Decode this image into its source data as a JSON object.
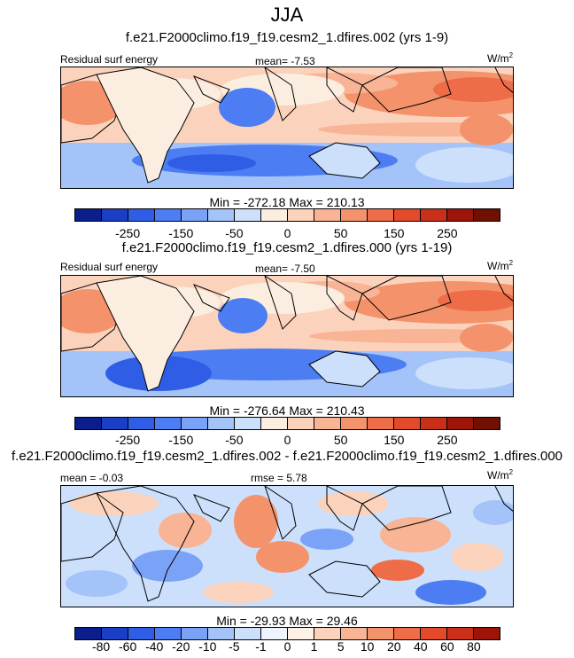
{
  "figure": {
    "title": "JJA"
  },
  "palettes": {
    "main": [
      "#0a1e8c",
      "#1a3fc4",
      "#2f5de6",
      "#4d7df2",
      "#7aa2f7",
      "#a3c3f9",
      "#cce0fb",
      "#fbeee0",
      "#fbd3bd",
      "#f8b494",
      "#f4926c",
      "#ee6d48",
      "#e24a2a",
      "#c8301a",
      "#9c1508",
      "#701000"
    ],
    "diff": [
      "#0a1e8c",
      "#1a3fc4",
      "#2f5de6",
      "#4d7df2",
      "#7aa2f7",
      "#a3c3f9",
      "#cce0fb",
      "#eef4fd",
      "#fdf1e6",
      "#fbd3bd",
      "#f8b494",
      "#f4926c",
      "#ee6d48",
      "#e24a2a",
      "#c8301a",
      "#9c1508"
    ]
  },
  "chart_data": [
    {
      "type": "heatmap",
      "title": "f.e21.F2000climo.f19_f19.cesm2_1.dfires.002 (yrs 1-9)",
      "variable": "Residual surf energy",
      "units": "W/m",
      "units_sup": "2",
      "mean_label": "mean=",
      "mean_value": "-7.53",
      "stats": {
        "min": "-272.18",
        "max": "210.13"
      },
      "stats_text": "Min = -272.18 Max = 210.13",
      "colorbar_ticks": [
        "-250",
        "-150",
        "-50",
        "0",
        "50",
        "150",
        "250"
      ],
      "colorbar_levels": [
        -300,
        -250,
        -200,
        -150,
        -100,
        -50,
        -25,
        0,
        25,
        50,
        100,
        150,
        200,
        250,
        300
      ]
    },
    {
      "type": "heatmap",
      "title": "f.e21.F2000climo.f19_f19.cesm2_1.dfires.000 (yrs 1-19)",
      "variable": "Residual surf energy",
      "units": "W/m",
      "units_sup": "2",
      "mean_label": "mean=",
      "mean_value": "-7.50",
      "stats": {
        "min": "-276.64",
        "max": "210.43"
      },
      "stats_text": "Min = -276.64 Max = 210.43",
      "colorbar_ticks": [
        "-250",
        "-150",
        "-50",
        "0",
        "50",
        "150",
        "250"
      ],
      "colorbar_levels": [
        -300,
        -250,
        -200,
        -150,
        -100,
        -50,
        -25,
        0,
        25,
        50,
        100,
        150,
        200,
        250,
        300
      ]
    },
    {
      "type": "heatmap",
      "title": "f.e21.F2000climo.f19_f19.cesm2_1.dfires.002 - f.e21.F2000climo.f19_f19.cesm2_1.dfires.000",
      "mean_label": "mean =",
      "mean_value": "-0.03",
      "rmse_label": "rmse =",
      "rmse_value": "5.78",
      "units": "W/m",
      "units_sup": "2",
      "stats": {
        "min": "-29.93",
        "max": "29.46"
      },
      "stats_text": "Min = -29.93 Max =  29.46",
      "colorbar_ticks": [
        "-80",
        "-60",
        "-40",
        "-20",
        "-10",
        "-5",
        "-1",
        "0",
        "1",
        "5",
        "10",
        "20",
        "40",
        "60",
        "80"
      ],
      "colorbar_levels": [
        -80,
        -60,
        -40,
        -20,
        -10,
        -5,
        -1,
        0,
        1,
        5,
        10,
        20,
        40,
        60,
        80
      ]
    }
  ]
}
